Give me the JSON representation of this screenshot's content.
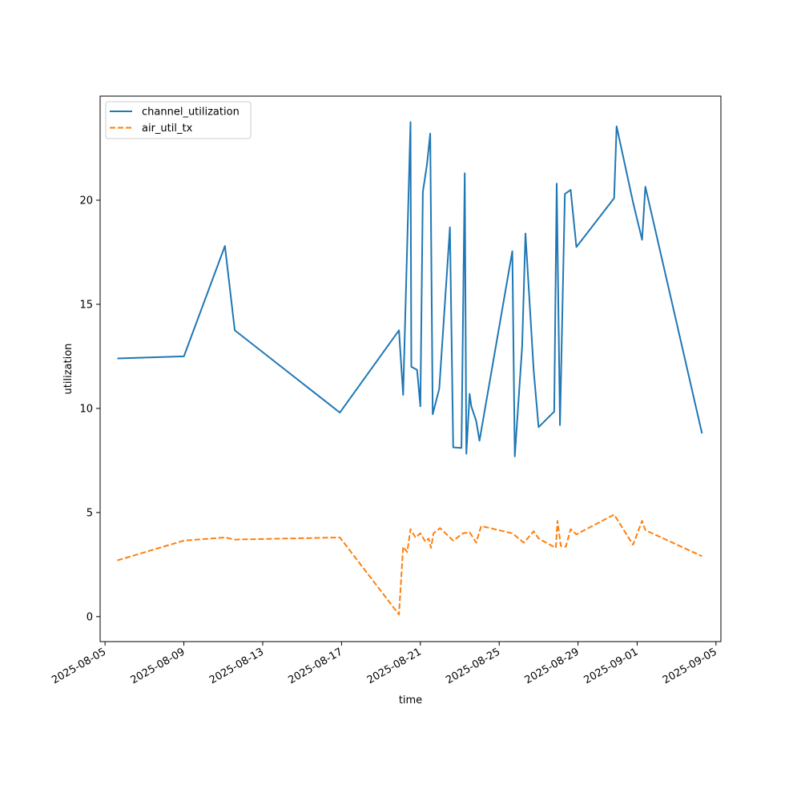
{
  "chart_data": {
    "type": "line",
    "xlabel": "time",
    "ylabel": "utilization",
    "x_tick_labels": [
      "2025-08-05",
      "2025-08-09",
      "2025-08-13",
      "2025-08-17",
      "2025-08-21",
      "2025-08-25",
      "2025-08-29",
      "2025-09-01",
      "2025-09-05"
    ],
    "y_tick_labels": [
      "0",
      "5",
      "10",
      "15",
      "20"
    ],
    "xlim": [
      "2025-08-04T18:00",
      "2025-09-05T06:00"
    ],
    "ylim": [
      -1.2,
      25
    ],
    "legend_position": "top-left",
    "grid": false,
    "series": [
      {
        "name": "channel_utilization",
        "color": "#1f77b4",
        "style": "solid",
        "points": [
          [
            "2025-08-05T15:00",
            12.4
          ],
          [
            "2025-08-09T00:00",
            12.5
          ],
          [
            "2025-08-11T02:00",
            17.8
          ],
          [
            "2025-08-11T14:00",
            13.75
          ],
          [
            "2025-08-16T22:00",
            9.8
          ],
          [
            "2025-08-19T22:00",
            13.75
          ],
          [
            "2025-08-20T03:00",
            10.65
          ],
          [
            "2025-08-20T12:00",
            23.75
          ],
          [
            "2025-08-20T13:00",
            12.0
          ],
          [
            "2025-08-20T20:00",
            11.85
          ],
          [
            "2025-08-21T00:00",
            10.1
          ],
          [
            "2025-08-21T03:00",
            20.4
          ],
          [
            "2025-08-21T08:00",
            21.7
          ],
          [
            "2025-08-21T12:00",
            23.2
          ],
          [
            "2025-08-21T15:00",
            9.72
          ],
          [
            "2025-08-21T23:00",
            10.95
          ],
          [
            "2025-08-22T12:00",
            18.7
          ],
          [
            "2025-08-22T16:00",
            8.13
          ],
          [
            "2025-08-23T02:00",
            8.1
          ],
          [
            "2025-08-23T06:00",
            21.3
          ],
          [
            "2025-08-23T08:00",
            7.82
          ],
          [
            "2025-08-23T12:00",
            10.7
          ],
          [
            "2025-08-23T14:00",
            10.1
          ],
          [
            "2025-08-23T20:00",
            9.4
          ],
          [
            "2025-08-24T00:00",
            8.45
          ],
          [
            "2025-08-25T16:00",
            17.55
          ],
          [
            "2025-08-25T19:00",
            7.7
          ],
          [
            "2025-08-26T04:00",
            13.0
          ],
          [
            "2025-08-26T08:00",
            18.4
          ],
          [
            "2025-08-26T18:00",
            11.8
          ],
          [
            "2025-08-27T00:00",
            9.1
          ],
          [
            "2025-08-27T19:00",
            9.85
          ],
          [
            "2025-08-27T22:00",
            20.8
          ],
          [
            "2025-08-28T02:00",
            9.2
          ],
          [
            "2025-08-28T08:00",
            20.3
          ],
          [
            "2025-08-28T15:00",
            20.5
          ],
          [
            "2025-08-28T22:00",
            17.75
          ],
          [
            "2025-08-30T20:00",
            20.1
          ],
          [
            "2025-08-30T23:00",
            23.55
          ],
          [
            "2025-08-31T19:00",
            19.9
          ],
          [
            "2025-09-01T06:00",
            18.1
          ],
          [
            "2025-09-01T10:00",
            20.65
          ],
          [
            "2025-09-04T07:00",
            8.8
          ]
        ]
      },
      {
        "name": "air_util_tx",
        "color": "#ff7f0e",
        "style": "dashed",
        "points": [
          [
            "2025-08-05T15:00",
            2.7
          ],
          [
            "2025-08-09T00:00",
            3.65
          ],
          [
            "2025-08-11T02:00",
            3.8
          ],
          [
            "2025-08-11T14:00",
            3.7
          ],
          [
            "2025-08-16T22:00",
            3.8
          ],
          [
            "2025-08-19T22:00",
            0.1
          ],
          [
            "2025-08-20T03:00",
            3.35
          ],
          [
            "2025-08-20T08:00",
            3.1
          ],
          [
            "2025-08-20T12:00",
            4.2
          ],
          [
            "2025-08-20T18:00",
            3.8
          ],
          [
            "2025-08-21T00:00",
            4.0
          ],
          [
            "2025-08-21T06:00",
            3.6
          ],
          [
            "2025-08-21T10:00",
            3.75
          ],
          [
            "2025-08-21T13:00",
            3.3
          ],
          [
            "2025-08-21T16:00",
            4.0
          ],
          [
            "2025-08-22T00:00",
            4.25
          ],
          [
            "2025-08-22T16:00",
            3.65
          ],
          [
            "2025-08-23T04:00",
            4.0
          ],
          [
            "2025-08-23T12:00",
            4.05
          ],
          [
            "2025-08-23T20:00",
            3.55
          ],
          [
            "2025-08-24T02:00",
            4.35
          ],
          [
            "2025-08-25T16:00",
            4.0
          ],
          [
            "2025-08-26T06:00",
            3.55
          ],
          [
            "2025-08-26T18:00",
            4.1
          ],
          [
            "2025-08-27T00:00",
            3.75
          ],
          [
            "2025-08-27T21:00",
            3.3
          ],
          [
            "2025-08-27T23:00",
            4.6
          ],
          [
            "2025-08-28T03:00",
            3.4
          ],
          [
            "2025-08-28T09:00",
            3.35
          ],
          [
            "2025-08-28T15:00",
            4.2
          ],
          [
            "2025-08-28T22:00",
            3.95
          ],
          [
            "2025-08-30T20:00",
            4.9
          ],
          [
            "2025-08-31T19:00",
            3.45
          ],
          [
            "2025-09-01T06:00",
            4.6
          ],
          [
            "2025-09-01T10:00",
            4.15
          ],
          [
            "2025-09-04T07:00",
            2.9
          ]
        ]
      }
    ]
  }
}
